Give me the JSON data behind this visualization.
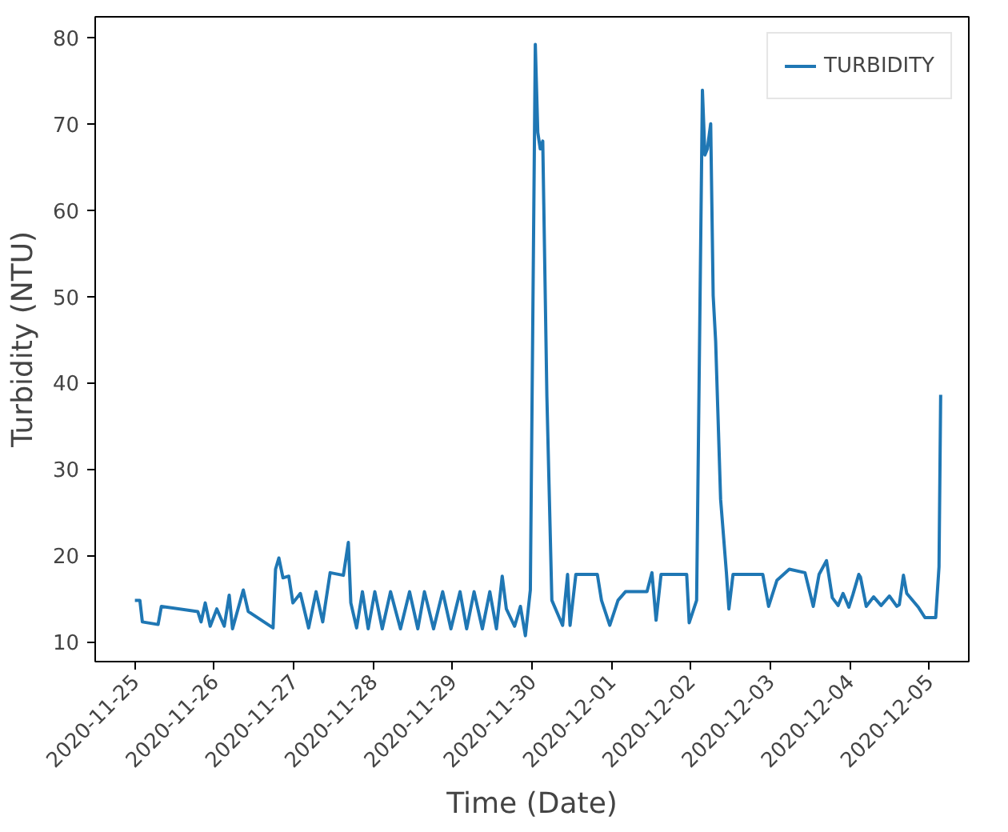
{
  "chart_data": {
    "type": "line",
    "xlabel": "Time (Date)",
    "ylabel": "Turbidity (NTU)",
    "x": [
      "2020-11-25T00:00",
      "2020-11-25T01:30",
      "2020-11-25T02:15",
      "2020-11-25T07:00",
      "2020-11-25T08:00",
      "2020-11-25T19:00",
      "2020-11-25T20:00",
      "2020-11-25T21:15",
      "2020-11-25T22:45",
      "2020-11-26T00:45",
      "2020-11-26T03:00",
      "2020-11-26T04:30",
      "2020-11-26T05:30",
      "2020-11-26T08:45",
      "2020-11-26T10:15",
      "2020-11-26T17:45",
      "2020-11-26T18:30",
      "2020-11-26T19:30",
      "2020-11-26T20:45",
      "2020-11-26T22:30",
      "2020-11-26T23:45",
      "2020-11-27T02:00",
      "2020-11-27T04:30",
      "2020-11-27T06:45",
      "2020-11-27T08:45",
      "2020-11-27T11:00",
      "2020-11-27T15:00",
      "2020-11-27T16:30",
      "2020-11-27T17:15",
      "2020-11-27T19:00",
      "2020-11-27T20:45",
      "2020-11-27T22:30",
      "2020-11-28T00:30",
      "2020-11-28T02:45",
      "2020-11-28T05:15",
      "2020-11-28T08:15",
      "2020-11-28T11:00",
      "2020-11-28T13:30",
      "2020-11-28T15:30",
      "2020-11-28T18:15",
      "2020-11-28T21:00",
      "2020-11-28T23:30",
      "2020-11-29T02:15",
      "2020-11-29T04:15",
      "2020-11-29T06:30",
      "2020-11-29T09:00",
      "2020-11-29T11:15",
      "2020-11-29T13:15",
      "2020-11-29T15:00",
      "2020-11-29T16:15",
      "2020-11-29T18:45",
      "2020-11-29T20:30",
      "2020-11-29T22:00",
      "2020-11-29T23:30",
      "2020-11-30T01:00",
      "2020-11-30T01:45",
      "2020-11-30T02:30",
      "2020-11-30T03:15",
      "2020-11-30T04:30",
      "2020-11-30T06:00",
      "2020-11-30T09:15",
      "2020-11-30T10:45",
      "2020-11-30T11:30",
      "2020-11-30T13:15",
      "2020-11-30T19:45",
      "2020-11-30T21:00",
      "2020-11-30T23:30",
      "2020-12-01T02:00",
      "2020-12-01T04:15",
      "2020-12-01T10:45",
      "2020-12-01T12:15",
      "2020-12-01T13:30",
      "2020-12-01T15:00",
      "2020-12-01T22:45",
      "2020-12-01T23:30",
      "2020-12-02T01:45",
      "2020-12-02T03:30",
      "2020-12-02T04:15",
      "2020-12-02T05:00",
      "2020-12-02T06:00",
      "2020-12-02T06:45",
      "2020-12-02T07:30",
      "2020-12-02T09:00",
      "2020-12-02T10:45",
      "2020-12-02T11:30",
      "2020-12-02T12:45",
      "2020-12-02T21:45",
      "2020-12-02T23:30",
      "2020-12-03T02:00",
      "2020-12-03T05:45",
      "2020-12-03T10:30",
      "2020-12-03T13:00",
      "2020-12-03T14:45",
      "2020-12-03T17:00",
      "2020-12-03T18:45",
      "2020-12-03T20:30",
      "2020-12-03T22:00",
      "2020-12-03T23:45",
      "2020-12-04T01:00",
      "2020-12-04T02:45",
      "2020-12-04T03:15",
      "2020-12-04T05:00",
      "2020-12-04T07:15",
      "2020-12-04T09:30",
      "2020-12-04T12:00",
      "2020-12-04T14:15",
      "2020-12-04T15:00",
      "2020-12-04T16:15",
      "2020-12-04T17:15",
      "2020-12-04T20:45",
      "2020-12-04T22:45",
      "2020-12-05T02:00",
      "2020-12-05T03:00",
      "2020-12-05T03:30"
    ],
    "series": [
      {
        "name": "TURBIDITY",
        "color": "#1f77b4",
        "values": [
          14.8,
          14.8,
          12.3,
          12.0,
          14.1,
          13.5,
          12.3,
          14.5,
          11.8,
          13.8,
          11.8,
          15.4,
          11.5,
          16.0,
          13.5,
          11.6,
          18.4,
          19.7,
          17.4,
          17.6,
          14.5,
          15.6,
          11.6,
          15.8,
          12.3,
          18.0,
          17.7,
          21.5,
          14.5,
          11.6,
          15.8,
          11.5,
          15.8,
          11.5,
          15.8,
          11.5,
          15.8,
          11.5,
          15.8,
          11.5,
          15.8,
          11.5,
          15.8,
          11.5,
          15.8,
          11.5,
          15.8,
          11.5,
          17.6,
          13.8,
          11.8,
          14.1,
          10.7,
          16.0,
          79.2,
          69.0,
          67.1,
          68.0,
          38.4,
          14.8,
          11.9,
          17.8,
          11.9,
          17.8,
          17.8,
          14.8,
          11.9,
          14.8,
          15.8,
          15.8,
          18.0,
          12.5,
          17.8,
          17.8,
          12.2,
          14.8,
          73.9,
          66.4,
          67.1,
          70.0,
          50.1,
          44.8,
          26.5,
          18.0,
          13.8,
          17.8,
          17.8,
          14.1,
          17.1,
          18.4,
          18.0,
          14.1,
          17.8,
          19.4,
          15.1,
          14.2,
          15.6,
          14.0,
          15.5,
          17.8,
          17.5,
          14.1,
          15.2,
          14.2,
          15.3,
          14.1,
          14.3,
          17.7,
          15.6,
          14.0,
          12.8,
          12.8,
          18.7,
          38.6
        ]
      }
    ],
    "xlim": [
      "2020-11-24T12:00",
      "2020-12-05T12:00"
    ],
    "xticks": [
      "2020-11-25",
      "2020-11-26",
      "2020-11-27",
      "2020-11-28",
      "2020-11-29",
      "2020-11-30",
      "2020-12-01",
      "2020-12-02",
      "2020-12-03",
      "2020-12-04",
      "2020-12-05"
    ],
    "ylim": [
      7.7,
      82.4
    ],
    "yticks": [
      10,
      20,
      30,
      40,
      50,
      60,
      70,
      80
    ],
    "grid": false,
    "legend": "top right"
  }
}
